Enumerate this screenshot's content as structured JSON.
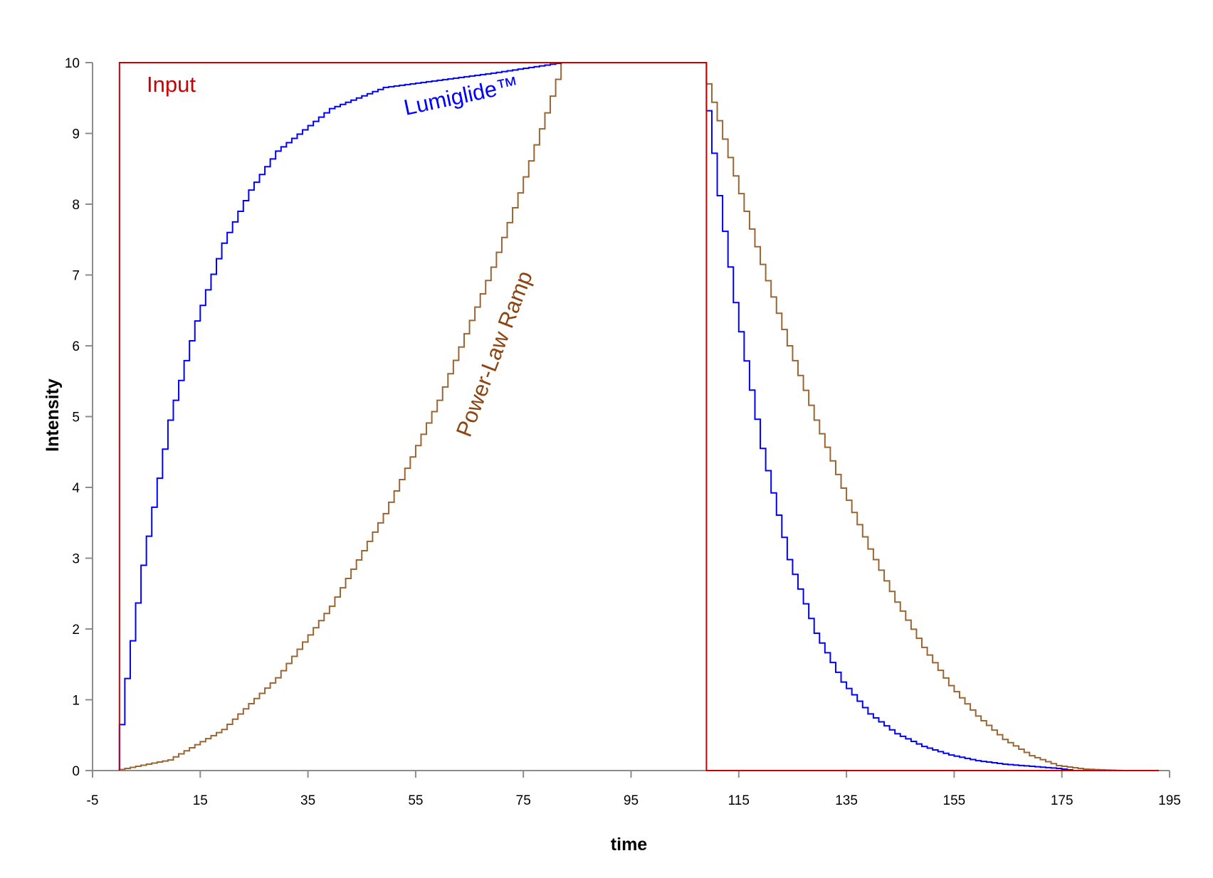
{
  "chart_data": {
    "type": "line",
    "title": "",
    "xlabel": "time",
    "ylabel": "Intensity",
    "xlim": [
      -5,
      195
    ],
    "ylim": [
      0,
      10
    ],
    "xticks": [
      "-5",
      "15",
      "35",
      "55",
      "75",
      "95",
      "115",
      "135",
      "155",
      "175",
      "195"
    ],
    "yticks": [
      "0",
      "1",
      "2",
      "3",
      "4",
      "5",
      "6",
      "7",
      "8",
      "9",
      "10"
    ],
    "grid": false,
    "legend": "none (series labelled directly on the plot)",
    "step_size": 1,
    "series": [
      {
        "name": "Input",
        "color": "#cc0000",
        "label_color": "#cc0000",
        "x": [
          0,
          0,
          109,
          109,
          193
        ],
        "y": [
          0,
          10,
          10,
          0,
          0
        ]
      },
      {
        "name": "Lumiglide™",
        "color": "#0000ff",
        "label_color": "#0000ff",
        "x": [
          0,
          2,
          5,
          10,
          15,
          20,
          25,
          30,
          40,
          50,
          60,
          70,
          83,
          109,
          110,
          112,
          115,
          120,
          125,
          130,
          135,
          140,
          145,
          150,
          155,
          160,
          165,
          170,
          175,
          178,
          193
        ],
        "y": [
          0,
          1.3,
          2.9,
          4.95,
          6.35,
          7.45,
          8.2,
          8.75,
          9.35,
          9.65,
          9.75,
          9.85,
          10,
          10,
          9.32,
          8.12,
          6.61,
          4.55,
          2.98,
          1.94,
          1.25,
          0.8,
          0.52,
          0.34,
          0.22,
          0.14,
          0.09,
          0.06,
          0.03,
          0,
          0
        ]
      },
      {
        "name": "Power-Law Ramp",
        "color": "#996633",
        "label_color": "#8b4513",
        "x": [
          0,
          10,
          20,
          30,
          40,
          50,
          60,
          70,
          75,
          80,
          83,
          109,
          110,
          115,
          120,
          125,
          130,
          135,
          140,
          145,
          150,
          155,
          160,
          165,
          170,
          175,
          180,
          185,
          187,
          193
        ],
        "y": [
          0,
          0.15,
          0.58,
          1.31,
          2.32,
          3.63,
          5.23,
          7.11,
          8.16,
          9.29,
          10,
          10,
          9.7,
          8.4,
          7.15,
          6.0,
          4.95,
          3.99,
          3.13,
          2.38,
          1.74,
          1.2,
          0.77,
          0.44,
          0.21,
          0.07,
          0.02,
          0.005,
          0,
          0
        ]
      }
    ]
  }
}
